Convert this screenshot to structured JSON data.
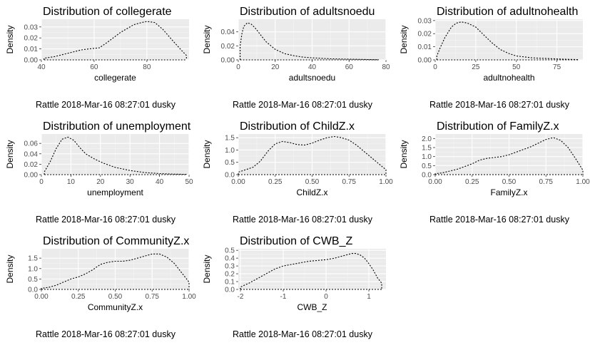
{
  "chart_data": [
    {
      "type": "area",
      "title": "Distribution of collegerate",
      "xlabel": "collegerate",
      "ylabel": "Density",
      "caption": "Rattle 2018-Mar-16 08:27:01 dusky",
      "xlim": [
        40,
        96
      ],
      "ylim": [
        0,
        0.037
      ],
      "xticks": [
        40,
        60,
        80
      ],
      "yticks": [
        0.0,
        0.01,
        0.02,
        0.03
      ],
      "ytick_labels": [
        "0.00",
        "0.01",
        "0.02",
        "0.03"
      ],
      "x": [
        41,
        45,
        50,
        55,
        58,
        62,
        65,
        70,
        75,
        78,
        80,
        83,
        86,
        90,
        93,
        95
      ],
      "y": [
        0.0015,
        0.003,
        0.006,
        0.009,
        0.01,
        0.011,
        0.016,
        0.025,
        0.032,
        0.034,
        0.035,
        0.034,
        0.028,
        0.017,
        0.009,
        0.004
      ]
    },
    {
      "type": "area",
      "title": "Distribution of adultsnoedu",
      "xlabel": "adultsnoedu",
      "ylabel": "Density",
      "caption": "Rattle 2018-Mar-16 08:27:01 dusky",
      "xlim": [
        0,
        80
      ],
      "ylim": [
        0,
        0.058
      ],
      "xticks": [
        0,
        20,
        40,
        60,
        80
      ],
      "yticks": [
        0.0,
        0.02,
        0.04
      ],
      "ytick_labels": [
        "0.00",
        "0.02",
        "0.04"
      ],
      "x": [
        1,
        2,
        3,
        5,
        7,
        9,
        12,
        15,
        20,
        25,
        30,
        35,
        40,
        50,
        60,
        70,
        76
      ],
      "y": [
        0.02,
        0.038,
        0.048,
        0.053,
        0.051,
        0.046,
        0.036,
        0.026,
        0.015,
        0.009,
        0.006,
        0.004,
        0.003,
        0.0015,
        0.001,
        0.0005,
        0.0002
      ]
    },
    {
      "type": "area",
      "title": "Distribution of adultnohealth",
      "xlabel": "adultnohealth",
      "ylabel": "Density",
      "caption": "Rattle 2018-Mar-16 08:27:01 dusky",
      "xlim": [
        0,
        91
      ],
      "ylim": [
        0,
        0.031
      ],
      "xticks": [
        0,
        25,
        50,
        75
      ],
      "yticks": [
        0.0,
        0.01,
        0.02,
        0.03
      ],
      "ytick_labels": [
        "0.00",
        "0.01",
        "0.02",
        "0.03"
      ],
      "x": [
        1,
        3,
        6,
        10,
        13,
        16,
        20,
        25,
        30,
        35,
        40,
        45,
        50,
        60,
        70,
        80,
        88
      ],
      "y": [
        0.003,
        0.009,
        0.017,
        0.025,
        0.028,
        0.029,
        0.028,
        0.025,
        0.019,
        0.013,
        0.008,
        0.005,
        0.003,
        0.0015,
        0.001,
        0.0005,
        0.0002
      ]
    },
    {
      "type": "area",
      "title": "Distribution of unemployment",
      "xlabel": "unemployment",
      "ylabel": "Density",
      "caption": "Rattle 2018-Mar-16 08:27:01 dusky",
      "xlim": [
        0,
        50
      ],
      "ylim": [
        0,
        0.078
      ],
      "xticks": [
        0,
        10,
        20,
        30,
        40,
        50
      ],
      "yticks": [
        0.0,
        0.02,
        0.04,
        0.06
      ],
      "ytick_labels": [
        "0.00",
        "0.02",
        "0.04",
        "0.06"
      ],
      "x": [
        1,
        3,
        5,
        7,
        9,
        11,
        13,
        15,
        18,
        21,
        25,
        30,
        35,
        40,
        45,
        49
      ],
      "y": [
        0.005,
        0.025,
        0.05,
        0.068,
        0.072,
        0.066,
        0.052,
        0.04,
        0.03,
        0.022,
        0.014,
        0.008,
        0.004,
        0.002,
        0.001,
        0.0005
      ]
    },
    {
      "type": "area",
      "title": "Distribution of ChildZ.x",
      "xlabel": "ChildZ.x",
      "ylabel": "Density",
      "caption": "Rattle 2018-Mar-16 08:27:01 dusky",
      "xlim": [
        0,
        1
      ],
      "ylim": [
        0,
        1.65
      ],
      "xticks": [
        0,
        0.25,
        0.5,
        0.75,
        1
      ],
      "xtick_labels": [
        "0.00",
        "0.25",
        "0.50",
        "0.75",
        "1.00"
      ],
      "yticks": [
        0.0,
        0.5,
        1.0,
        1.5
      ],
      "ytick_labels": [
        "0.0",
        "0.5",
        "1.0",
        "1.5"
      ],
      "x": [
        0.0,
        0.05,
        0.1,
        0.15,
        0.2,
        0.25,
        0.3,
        0.35,
        0.4,
        0.45,
        0.5,
        0.55,
        0.6,
        0.65,
        0.7,
        0.75,
        0.8,
        0.85,
        0.9,
        0.95,
        1.0
      ],
      "y": [
        0.1,
        0.2,
        0.3,
        0.55,
        0.95,
        1.25,
        1.35,
        1.3,
        1.22,
        1.2,
        1.28,
        1.4,
        1.5,
        1.55,
        1.5,
        1.4,
        1.2,
        0.95,
        0.7,
        0.45,
        0.2
      ]
    },
    {
      "type": "area",
      "title": "Distribution of FamilyZ.x",
      "xlabel": "FamilyZ.x",
      "ylabel": "Density",
      "caption": "Rattle 2018-Mar-16 08:27:01 dusky",
      "xlim": [
        0,
        1
      ],
      "ylim": [
        0,
        2.25
      ],
      "xticks": [
        0,
        0.25,
        0.5,
        0.75,
        1
      ],
      "xtick_labels": [
        "0.00",
        "0.25",
        "0.50",
        "0.75",
        "1.00"
      ],
      "yticks": [
        0.0,
        0.5,
        1.0,
        1.5,
        2.0
      ],
      "ytick_labels": [
        "0.0",
        "0.5",
        "1.0",
        "1.5",
        "2.0"
      ],
      "x": [
        0.0,
        0.05,
        0.1,
        0.15,
        0.2,
        0.25,
        0.3,
        0.35,
        0.4,
        0.45,
        0.5,
        0.55,
        0.6,
        0.65,
        0.7,
        0.75,
        0.8,
        0.85,
        0.9,
        0.95,
        1.0
      ],
      "y": [
        0.05,
        0.1,
        0.2,
        0.3,
        0.45,
        0.6,
        0.8,
        0.9,
        0.95,
        1.0,
        1.1,
        1.25,
        1.4,
        1.55,
        1.75,
        1.95,
        2.05,
        1.9,
        1.5,
        0.9,
        0.25
      ]
    },
    {
      "type": "area",
      "title": "Distribution of CommunityZ.x",
      "xlabel": "CommunityZ.x",
      "ylabel": "Density",
      "caption": "Rattle 2018-Mar-16 08:27:01 dusky",
      "xlim": [
        0,
        1
      ],
      "ylim": [
        0,
        1.95
      ],
      "xticks": [
        0,
        0.25,
        0.5,
        0.75,
        1
      ],
      "xtick_labels": [
        "0.00",
        "0.25",
        "0.50",
        "0.75",
        "1.00"
      ],
      "yticks": [
        0.0,
        0.5,
        1.0,
        1.5
      ],
      "ytick_labels": [
        "0.0",
        "0.5",
        "1.0",
        "1.5"
      ],
      "x": [
        0.0,
        0.05,
        0.1,
        0.15,
        0.2,
        0.25,
        0.3,
        0.35,
        0.4,
        0.45,
        0.5,
        0.55,
        0.6,
        0.65,
        0.7,
        0.75,
        0.8,
        0.85,
        0.9,
        0.95,
        1.0
      ],
      "y": [
        0.05,
        0.1,
        0.2,
        0.35,
        0.5,
        0.6,
        0.75,
        0.95,
        1.2,
        1.3,
        1.35,
        1.35,
        1.4,
        1.5,
        1.6,
        1.7,
        1.7,
        1.55,
        1.25,
        0.8,
        0.35
      ]
    },
    {
      "type": "area",
      "title": "Distribution of CWB_Z",
      "xlabel": "CWB_Z",
      "ylabel": "Density",
      "caption": "Rattle 2018-Mar-16 08:27:01 dusky",
      "xlim": [
        -2.05,
        1.4
      ],
      "ylim": [
        0,
        0.52
      ],
      "xticks": [
        -2,
        -1,
        0,
        1
      ],
      "yticks": [
        0.0,
        0.1,
        0.2,
        0.3,
        0.4,
        0.5
      ],
      "ytick_labels": [
        "0.0",
        "0.1",
        "0.2",
        "0.3",
        "0.4",
        "0.5"
      ],
      "x": [
        -2.0,
        -1.8,
        -1.6,
        -1.4,
        -1.2,
        -1.0,
        -0.8,
        -0.6,
        -0.4,
        -0.2,
        0.0,
        0.2,
        0.4,
        0.6,
        0.7,
        0.8,
        0.9,
        1.0,
        1.1,
        1.2,
        1.3
      ],
      "y": [
        0.03,
        0.08,
        0.14,
        0.2,
        0.26,
        0.3,
        0.32,
        0.34,
        0.36,
        0.37,
        0.38,
        0.4,
        0.43,
        0.46,
        0.46,
        0.44,
        0.4,
        0.33,
        0.25,
        0.15,
        0.08
      ]
    }
  ]
}
